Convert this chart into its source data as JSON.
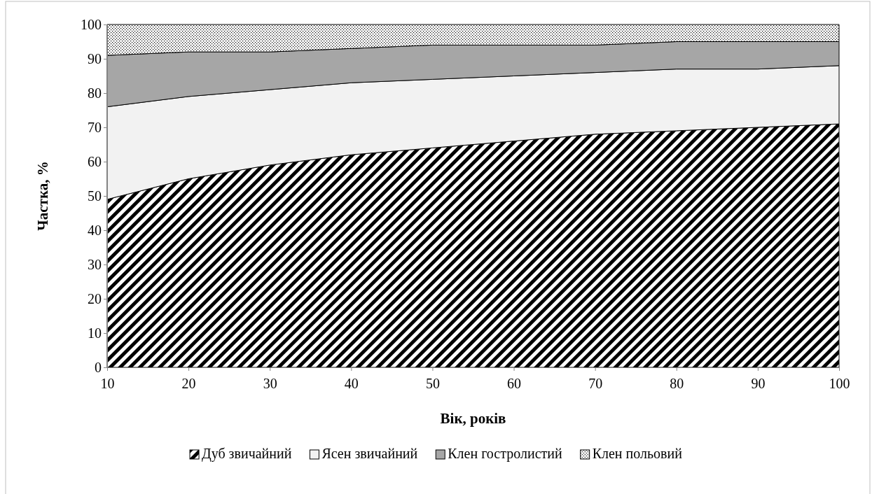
{
  "chart_data": {
    "type": "area",
    "stacked": true,
    "xlabel": "Вік, років",
    "ylabel": "Частка, %",
    "x": [
      10,
      20,
      30,
      40,
      50,
      60,
      70,
      80,
      90,
      100
    ],
    "xlim": [
      10,
      100
    ],
    "xticks": [
      10,
      20,
      30,
      40,
      50,
      60,
      70,
      80,
      90,
      100
    ],
    "ylim": [
      0,
      100
    ],
    "yticks": [
      0,
      10,
      20,
      30,
      40,
      50,
      60,
      70,
      80,
      90,
      100
    ],
    "legend": "bottom",
    "series": [
      {
        "name": "Дуб звичайний",
        "color": "#000000",
        "values": [
          49,
          55,
          59,
          62,
          64,
          66,
          68,
          69,
          70,
          71
        ]
      },
      {
        "name": "Ясен звичайний",
        "color": "#f2f2f2",
        "values": [
          27,
          24,
          22,
          21,
          20,
          19,
          18,
          18,
          17,
          17
        ]
      },
      {
        "name": "Клен гостролистий",
        "color": "#a6a6a6",
        "values": [
          15,
          13,
          11,
          10,
          10,
          9,
          8,
          8,
          8,
          7
        ]
      },
      {
        "name": "Клен польовий",
        "color": "#000000",
        "values": [
          9,
          8,
          8,
          7,
          6,
          6,
          6,
          5,
          5,
          5
        ]
      }
    ]
  }
}
